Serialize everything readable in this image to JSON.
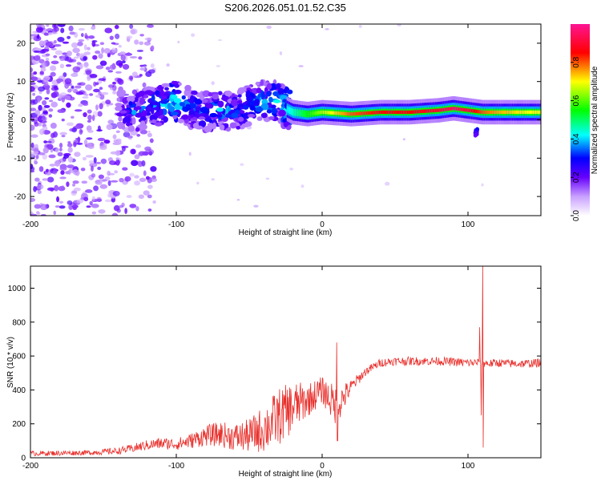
{
  "title": "S206.2026.051.01.52.C35",
  "chart_data": [
    {
      "type": "heatmap",
      "name": "spectrogram",
      "xlabel": "Height of straight line (km)",
      "ylabel": "Frequency (Hz)",
      "xlim": [
        -200,
        150
      ],
      "ylim": [
        -25,
        25
      ],
      "xticks": [
        -200,
        -100,
        0,
        100
      ],
      "xtick_labels": [
        "-200",
        "-100",
        "0",
        "100"
      ],
      "yticks": [
        -20,
        -10,
        0,
        10,
        20
      ],
      "ytick_labels": [
        "-20",
        "-10",
        "0",
        "10",
        "20"
      ],
      "colorbar": {
        "label": "Normalized spectral amplitude",
        "range": [
          0,
          1
        ],
        "ticks": [
          0.0,
          0.2,
          0.4,
          0.6,
          0.8
        ],
        "tick_labels": [
          "0.0",
          "0.2",
          "0.4",
          "0.6",
          "0.8"
        ],
        "colors": [
          "#ffffff",
          "#9933ff",
          "#0000ff",
          "#00ffff",
          "#00ff00",
          "#ffff00",
          "#ff0000",
          "#ff1493"
        ]
      },
      "ridge": {
        "x": [
          -140,
          -130,
          -120,
          -110,
          -100,
          -90,
          -80,
          -70,
          -60,
          -50,
          -40,
          -30,
          -25,
          -20,
          -10,
          0,
          20,
          40,
          60,
          80,
          90,
          100,
          110,
          120,
          140,
          150
        ],
        "freq": [
          3,
          2,
          3,
          4,
          5,
          3,
          2,
          3,
          2,
          4,
          5,
          5,
          3,
          2,
          1.5,
          2,
          1.5,
          2,
          2,
          2.5,
          3,
          2.5,
          2,
          2,
          2,
          2
        ],
        "amplitude": [
          0.2,
          0.3,
          0.3,
          0.35,
          0.4,
          0.3,
          0.3,
          0.35,
          0.3,
          0.35,
          0.35,
          0.35,
          0.4,
          0.45,
          0.55,
          0.65,
          0.8,
          0.85,
          0.85,
          0.9,
          0.95,
          0.9,
          0.8,
          0.75,
          0.7,
          0.7
        ]
      }
    },
    {
      "type": "line",
      "name": "snr",
      "xlabel": "Height of straight line (km)",
      "ylabel": "SNR (10 * v/v)",
      "xlim": [
        -200,
        150
      ],
      "ylim": [
        0,
        1130
      ],
      "xticks": [
        -200,
        -100,
        0,
        100
      ],
      "xtick_labels": [
        "-200",
        "-100",
        "0",
        "100"
      ],
      "yticks": [
        0,
        200,
        400,
        600,
        800,
        1000
      ],
      "ytick_labels": [
        "0",
        "200",
        "400",
        "600",
        "800",
        "1000"
      ],
      "color": "#e8302c",
      "envelope": {
        "x": [
          -200,
          -160,
          -140,
          -130,
          -120,
          -110,
          -100,
          -90,
          -80,
          -70,
          -60,
          -50,
          -40,
          -30,
          -20,
          -10,
          0,
          10,
          20,
          30,
          40,
          50,
          60,
          80,
          100,
          105,
          110,
          115,
          120,
          130,
          140,
          150
        ],
        "mean": [
          25,
          30,
          40,
          55,
          75,
          85,
          80,
          100,
          130,
          140,
          120,
          130,
          170,
          240,
          300,
          340,
          400,
          300,
          420,
          510,
          560,
          570,
          570,
          570,
          560,
          560,
          560,
          555,
          560,
          555,
          555,
          560
        ],
        "spread": [
          15,
          15,
          20,
          25,
          30,
          35,
          35,
          45,
          60,
          75,
          80,
          100,
          140,
          170,
          150,
          100,
          80,
          120,
          40,
          25,
          25,
          25,
          25,
          25,
          25,
          25,
          25,
          25,
          25,
          25,
          25,
          25
        ]
      },
      "spikes": [
        {
          "x": 10,
          "y": 680
        },
        {
          "x": 10.5,
          "y": 100
        },
        {
          "x": 108,
          "y": 770
        },
        {
          "x": 109,
          "y": 250
        },
        {
          "x": 110,
          "y": 1130
        },
        {
          "x": 110.5,
          "y": 60
        }
      ]
    }
  ]
}
